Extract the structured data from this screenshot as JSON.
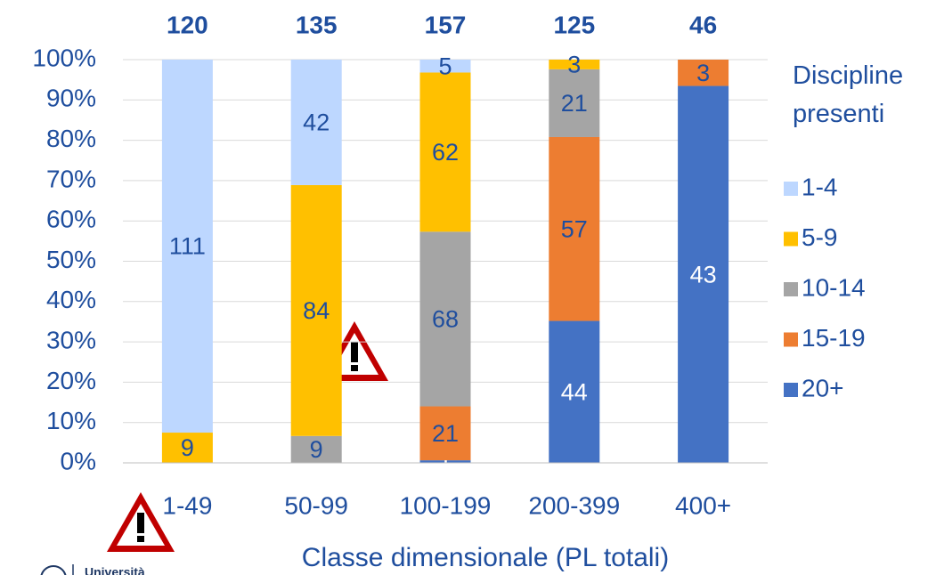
{
  "chart_data": {
    "type": "stacked_bar_100",
    "categories": [
      "1-49",
      "50-99",
      "100-199",
      "200-399",
      "400+"
    ],
    "totals": [
      120,
      135,
      157,
      125,
      46
    ],
    "series": [
      {
        "name": "1-4",
        "color": "#bdd7ff",
        "values": [
          111,
          42,
          5,
          null,
          null
        ]
      },
      {
        "name": "5-9",
        "color": "#ffc000",
        "values": [
          9,
          84,
          62,
          3,
          null
        ]
      },
      {
        "name": "10-14",
        "color": "#a5a5a5",
        "values": [
          null,
          9,
          68,
          21,
          null
        ]
      },
      {
        "name": "15-19",
        "color": "#ed7d31",
        "values": [
          null,
          null,
          21,
          57,
          3
        ]
      },
      {
        "name": "20+",
        "color": "#4472c4",
        "values": [
          null,
          null,
          1,
          44,
          43
        ]
      }
    ],
    "ylim": [
      0,
      100
    ],
    "yticks": [
      {
        "value": 0,
        "label": "0%"
      },
      {
        "value": 10,
        "label": "10%"
      },
      {
        "value": 20,
        "label": "20%"
      },
      {
        "value": 30,
        "label": "30%"
      },
      {
        "value": 40,
        "label": "40%"
      },
      {
        "value": 50,
        "label": "50%"
      },
      {
        "value": 60,
        "label": "60%"
      },
      {
        "value": 70,
        "label": "70%"
      },
      {
        "value": 80,
        "label": "80%"
      },
      {
        "value": 90,
        "label": "90%"
      },
      {
        "value": 100,
        "label": "100%"
      }
    ],
    "grid": true,
    "legend_title": "Discipline presenti",
    "xlabel": "Classe dimensionale (PL totali)",
    "logo_text": "Università"
  }
}
